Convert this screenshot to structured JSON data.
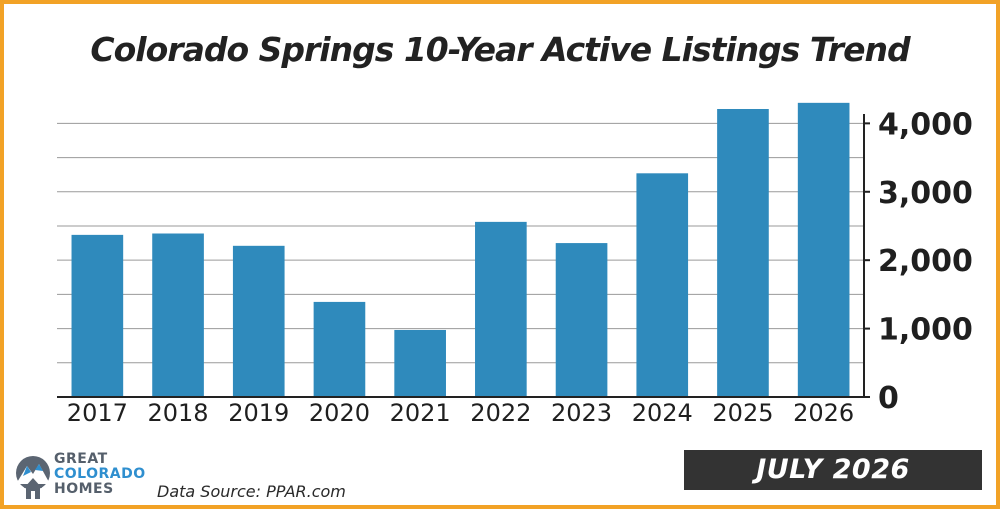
{
  "chart_data": {
    "type": "bar",
    "title": "Colorado Springs 10-Year Active Listings Trend",
    "categories": [
      "2017",
      "2018",
      "2019",
      "2020",
      "2021",
      "2022",
      "2023",
      "2024",
      "2025",
      "2026"
    ],
    "values": [
      2370,
      2390,
      2210,
      1390,
      980,
      2560,
      2250,
      3270,
      4210,
      4300
    ],
    "ylim": [
      0,
      4400
    ],
    "yticks": [
      0,
      1000,
      2000,
      3000,
      4000
    ],
    "ytick_labels": [
      "0",
      "1,000",
      "2,000",
      "3,000",
      "4,000"
    ],
    "y_axis_side": "right",
    "grid": true,
    "bar_color": "#2f8abc",
    "xlabel": "",
    "ylabel": ""
  },
  "footer": {
    "logo_line1": "GREAT",
    "logo_line2": "COLORADO",
    "logo_line3": "HOMES",
    "source": "Data Source: PPAR.com",
    "date_label": "JULY 2026"
  },
  "colors": {
    "border": "#f2a226",
    "banner_bg": "#333333",
    "logo_blue": "#2f8fcf",
    "logo_gray": "#555f6b"
  }
}
